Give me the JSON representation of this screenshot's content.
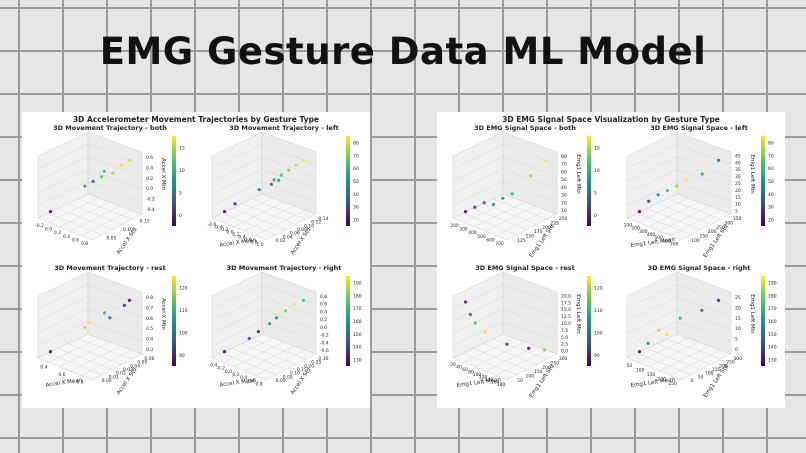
{
  "slide": {
    "title": "EMG Gesture Data ML Model"
  },
  "figures": [
    {
      "title": "3D Accelerometer Movement Trajectories by Gesture Type",
      "subplots": [
        {
          "title": "3D Movement Trajectory - both",
          "xlabel": "",
          "ylabel": "Accel X Std",
          "zlabel": "Accel X Min",
          "xticks": [
            "-0.2",
            "0.0",
            "0.2",
            "0.4",
            "0.6",
            "0.8"
          ],
          "yticks": [
            "0.05",
            "0.10",
            "0.15"
          ],
          "zticks": [
            "0.6",
            "0.4",
            "0.2",
            "0.0",
            "-0.2",
            "-0.4"
          ],
          "cticks": [
            "15",
            "10",
            "5",
            "0"
          ]
        },
        {
          "title": "3D Movement Trajectory - left",
          "xlabel": "Accel X Mean",
          "ylabel": "Accel X Std",
          "zlabel": "",
          "xticks": [
            "-0.6",
            "-0.4",
            "-0.2",
            "0.0",
            "0.2",
            "0.4",
            "0.6",
            "0.8",
            "1.0"
          ],
          "yticks": [
            "0.02",
            "0.04",
            "0.06",
            "0.08",
            "0.10",
            "0.12",
            "0.14"
          ],
          "zticks": [],
          "cticks": [
            "80",
            "70",
            "60",
            "50",
            "40",
            "30",
            "20"
          ]
        },
        {
          "title": "3D Movement Trajectory - rest",
          "xlabel": "Accel X Mean",
          "ylabel": "Accel X Std",
          "zlabel": "Accel X Min",
          "xticks": [
            "0.4",
            "0.6",
            "0.8"
          ],
          "yticks": [
            "0.00",
            "0.01",
            "0.02",
            "0.03",
            "0.04",
            "0.05",
            "0.06"
          ],
          "zticks": [
            "0.8",
            "0.7",
            "0.6",
            "0.5",
            "0.4",
            "0.3"
          ],
          "cticks": [
            "120",
            "110",
            "100",
            "90"
          ]
        },
        {
          "title": "3D Movement Trajectory - right",
          "xlabel": "Accel X Mean",
          "ylabel": "Accel X Std",
          "zlabel": "",
          "xticks": [
            "-0.4",
            "-0.2",
            "0.0",
            "0.2",
            "0.4",
            "0.6",
            "0.8"
          ],
          "yticks": [
            "0.00",
            "0.05",
            "0.10",
            "0.15",
            "0.20",
            "0.25",
            "0.30"
          ],
          "zticks": [
            "0.8",
            "0.6",
            "0.4",
            "0.2",
            "0.0",
            "-0.2",
            "-0.4",
            "-0.6"
          ],
          "cticks": [
            "190",
            "180",
            "170",
            "160",
            "150",
            "140",
            "130"
          ]
        }
      ]
    },
    {
      "title": "3D EMG Signal Space Visualization by Gesture Type",
      "subplots": [
        {
          "title": "3D EMG Signal Space - both",
          "xlabel": "",
          "ylabel": "Emg1 Left Std",
          "zlabel": "Emg1 Left Min",
          "xticks": [
            "200",
            "300",
            "400",
            "500",
            "600",
            "700"
          ],
          "yticks": [
            "125",
            "150",
            "175",
            "200",
            "225",
            "250"
          ],
          "zticks": [
            "80",
            "70",
            "60",
            "50",
            "40",
            "30",
            "20",
            "10"
          ],
          "cticks": [
            "15",
            "10",
            "5",
            "0"
          ]
        },
        {
          "title": "3D EMG Signal Space - left",
          "xlabel": "Emg1 Left Mean",
          "ylabel": "Emg1 Left Std",
          "zlabel": "Emg1 Left Min",
          "xticks": [
            "100",
            "200",
            "300",
            "400",
            "500",
            "600",
            "700"
          ],
          "yticks": [
            "100",
            "150",
            "200",
            "250",
            "300",
            "350"
          ],
          "zticks": [
            "45",
            "40",
            "35",
            "30",
            "25",
            "20",
            "15",
            "10",
            "5"
          ],
          "cticks": [
            "80",
            "70",
            "60",
            "50",
            "40",
            "30",
            "20"
          ]
        },
        {
          "title": "3D EMG Signal Space - rest",
          "xlabel": "Emg1 Left Mean",
          "ylabel": "Emg1 Left Std",
          "zlabel": "Emg1 Left Min",
          "xticks": [
            "20",
            "40",
            "60",
            "80",
            "100",
            "120",
            "140",
            "160",
            "180"
          ],
          "yticks": [
            "50",
            "100",
            "150",
            "200",
            "250",
            "300"
          ],
          "zticks": [
            "20.0",
            "17.5",
            "15.0",
            "12.5",
            "10.0",
            "7.5",
            "5.0",
            "2.5",
            "0.0"
          ],
          "cticks": [
            "120",
            "110",
            "100",
            "90"
          ]
        },
        {
          "title": "3D EMG Signal Space - right",
          "xlabel": "Emg1 Left Mean",
          "ylabel": "Emg1 Left Std",
          "zlabel": "Emg1 Left Min",
          "xticks": [
            "50",
            "100",
            "150",
            "200",
            "250"
          ],
          "yticks": [
            "0",
            "50",
            "100",
            "150",
            "200",
            "250",
            "300"
          ],
          "zticks": [
            "25",
            "20",
            "15",
            "10",
            "5",
            "0"
          ],
          "cticks": [
            "190",
            "180",
            "170",
            "160",
            "150",
            "140",
            "130"
          ]
        }
      ]
    }
  ],
  "colors": {
    "colormap": [
      "#440154",
      "#3b528b",
      "#21918c",
      "#5ec962",
      "#fde725"
    ]
  },
  "chart_data": [
    {
      "type": "scatter",
      "title": "3D Movement Trajectory - both",
      "series": [
        {
          "points": [
            [
              -0.1,
              0.08,
              -0.4,
              1
            ],
            [
              0.3,
              0.1,
              0.05,
              9
            ],
            [
              0.4,
              0.12,
              0.15,
              12
            ],
            [
              0.5,
              0.13,
              0.2,
              14
            ],
            [
              0.55,
              0.14,
              0.3,
              16
            ],
            [
              0.35,
              0.11,
              0.1,
              6
            ],
            [
              0.6,
              0.15,
              0.35,
              15
            ],
            [
              0.45,
              0.12,
              0.25,
              11
            ]
          ]
        }
      ]
    },
    {
      "type": "scatter",
      "title": "3D Movement Trajectory - left",
      "series": [
        {
          "points": [
            [
              -0.5,
              0.05,
              -0.2,
              22
            ],
            [
              -0.3,
              0.06,
              -0.1,
              28
            ],
            [
              0.2,
              0.08,
              0.1,
              45
            ],
            [
              0.4,
              0.1,
              0.2,
              55
            ],
            [
              0.5,
              0.11,
              0.25,
              62
            ],
            [
              0.6,
              0.12,
              0.3,
              70
            ],
            [
              0.7,
              0.13,
              0.35,
              75
            ],
            [
              0.55,
              0.1,
              0.22,
              50
            ],
            [
              0.45,
              0.09,
              0.18,
              40
            ],
            [
              0.8,
              0.14,
              0.4,
              80
            ]
          ]
        }
      ]
    },
    {
      "type": "scatter",
      "title": "3D Movement Trajectory - rest",
      "series": [
        {
          "points": [
            [
              0.35,
              0.01,
              0.35,
              92
            ],
            [
              0.5,
              0.03,
              0.5,
              118
            ],
            [
              0.55,
              0.03,
              0.55,
              121
            ],
            [
              0.6,
              0.04,
              0.6,
              110
            ],
            [
              0.7,
              0.05,
              0.65,
              95
            ],
            [
              0.75,
              0.05,
              0.7,
              92
            ],
            [
              0.65,
              0.04,
              0.58,
              100
            ]
          ]
        }
      ]
    },
    {
      "type": "scatter",
      "title": "3D Movement Trajectory - right",
      "series": [
        {
          "points": [
            [
              -0.3,
              0.05,
              -0.4,
              135
            ],
            [
              0.0,
              0.1,
              -0.2,
              145
            ],
            [
              0.2,
              0.15,
              0.0,
              160
            ],
            [
              0.4,
              0.18,
              0.2,
              175
            ],
            [
              0.5,
              0.2,
              0.3,
              185
            ],
            [
              0.6,
              0.22,
              0.35,
              170
            ],
            [
              0.3,
              0.16,
              0.1,
              155
            ],
            [
              0.1,
              0.12,
              -0.1,
              140
            ]
          ]
        }
      ]
    },
    {
      "type": "scatter",
      "title": "3D EMG Signal Space - both",
      "series": [
        {
          "points": [
            [
              250,
              150,
              20,
              1
            ],
            [
              300,
              160,
              25,
              3
            ],
            [
              350,
              170,
              30,
              5
            ],
            [
              400,
              180,
              28,
              7
            ],
            [
              500,
              200,
              40,
              10
            ],
            [
              600,
              220,
              60,
              14
            ],
            [
              650,
              240,
              75,
              16
            ],
            [
              450,
              190,
              35,
              8
            ]
          ]
        }
      ]
    },
    {
      "type": "scatter",
      "title": "3D EMG Signal Space - left",
      "series": [
        {
          "points": [
            [
              150,
              120,
              10,
              22
            ],
            [
              200,
              140,
              15,
              30
            ],
            [
              250,
              160,
              18,
              45
            ],
            [
              300,
              180,
              20,
              60
            ],
            [
              350,
              200,
              22,
              72
            ],
            [
              400,
              220,
              25,
              80
            ],
            [
              500,
              250,
              28,
              55
            ],
            [
              600,
              280,
              35,
              40
            ]
          ]
        }
      ]
    },
    {
      "type": "scatter",
      "title": "3D EMG Signal Space - rest",
      "series": [
        {
          "points": [
            [
              20,
              60,
              15,
              92
            ],
            [
              30,
              70,
              12,
              100
            ],
            [
              40,
              80,
              10,
              110
            ],
            [
              60,
              100,
              8,
              120
            ],
            [
              100,
              150,
              5,
              95
            ],
            [
              140,
              200,
              4,
              90
            ],
            [
              160,
              250,
              3,
              115
            ]
          ]
        }
      ]
    },
    {
      "type": "scatter",
      "title": "3D EMG Signal Space - right",
      "series": [
        {
          "points": [
            [
              60,
              50,
              10,
              135
            ],
            [
              80,
              70,
              12,
              160
            ],
            [
              100,
              100,
              15,
              185
            ],
            [
              150,
              150,
              18,
              170
            ],
            [
              200,
              200,
              20,
              150
            ],
            [
              230,
              250,
              22,
              140
            ],
            [
              120,
              120,
              14,
              190
            ]
          ]
        }
      ]
    }
  ]
}
